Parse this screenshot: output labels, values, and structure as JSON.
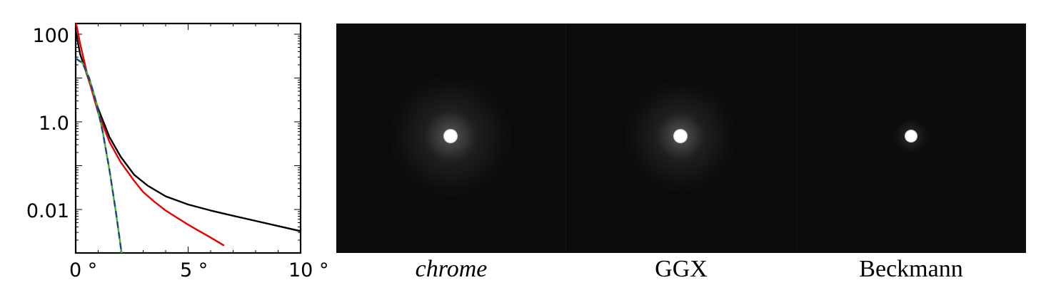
{
  "chart_data": {
    "type": "line",
    "x_tick_labels": [
      "0 °",
      "5 °",
      "10 °"
    ],
    "y_tick_labels": [
      "100",
      "1.0",
      "0.01"
    ],
    "xlim": [
      0,
      10
    ],
    "ylim": [
      0.001,
      200
    ],
    "y_scale": "log",
    "grid": false,
    "series": [
      {
        "color": "#000000",
        "dashed": false,
        "x": [
          0,
          0.2,
          0.5,
          1.0,
          1.5,
          2.0,
          2.6,
          3.2,
          4.0,
          5.0,
          6.0,
          7.0,
          8.0,
          9.0,
          10.0
        ],
        "y": [
          120,
          35,
          12,
          2.0,
          0.45,
          0.16,
          0.062,
          0.035,
          0.02,
          0.013,
          0.0095,
          0.0072,
          0.0055,
          0.0042,
          0.0032
        ]
      },
      {
        "color": "#e80000",
        "dashed": false,
        "x": [
          0,
          0.2,
          0.5,
          1.0,
          1.5,
          2.0,
          2.6,
          3.0,
          3.5,
          4.0,
          4.5,
          5.0,
          5.5,
          6.0,
          6.6
        ],
        "y": [
          200,
          60,
          13,
          1.6,
          0.35,
          0.12,
          0.045,
          0.025,
          0.015,
          0.0095,
          0.0065,
          0.0045,
          0.0032,
          0.0023,
          0.0015
        ]
      },
      {
        "color": "#37b82f",
        "dashed": false,
        "x": [
          0,
          0.3,
          0.6,
          0.9,
          1.2,
          1.5,
          1.8,
          2.1
        ],
        "y": [
          28,
          22,
          10,
          3.0,
          0.6,
          0.08,
          0.008,
          0.0006
        ]
      },
      {
        "color": "#25408f",
        "dashed": true,
        "x": [
          0,
          0.3,
          0.6,
          0.9,
          1.2,
          1.5,
          1.8,
          2.1
        ],
        "y": [
          28,
          22,
          10,
          3.0,
          0.6,
          0.08,
          0.008,
          0.0006
        ]
      }
    ]
  },
  "renders": [
    {
      "caption": "chrome",
      "italic": true,
      "spot_radius": 10,
      "glow_radius": 85,
      "background": "#0c0b0b"
    },
    {
      "caption": "GGX",
      "italic": false,
      "spot_radius": 10,
      "glow_radius": 78,
      "background": "#0b0b0b"
    },
    {
      "caption": "Beckmann",
      "italic": false,
      "spot_radius": 9,
      "glow_radius": 24,
      "background": "#0c0c0d"
    }
  ]
}
